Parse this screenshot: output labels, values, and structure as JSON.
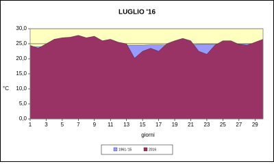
{
  "chart_data": {
    "type": "area",
    "title": "LUGLIO '16",
    "x_label": "giorni",
    "y_label": "°C",
    "x": [
      1,
      2,
      3,
      4,
      5,
      6,
      7,
      8,
      9,
      10,
      11,
      12,
      13,
      14,
      15,
      16,
      17,
      18,
      19,
      20,
      21,
      22,
      23,
      24,
      25,
      26,
      27,
      28,
      29,
      30
    ],
    "xlim": [
      1,
      30
    ],
    "xticks": [
      1,
      3,
      5,
      7,
      9,
      11,
      13,
      15,
      17,
      19,
      21,
      23,
      25,
      27,
      29
    ],
    "ylim": [
      0,
      30
    ],
    "yticks": [
      {
        "value": 0,
        "label": "0,0"
      },
      {
        "value": 5,
        "label": "5,0"
      },
      {
        "value": 10,
        "label": "10,0"
      },
      {
        "value": 15,
        "label": "15,0"
      },
      {
        "value": 20,
        "label": "20,0"
      },
      {
        "value": 25,
        "label": "25,0"
      },
      {
        "value": 30,
        "label": "30,0"
      }
    ],
    "grid": true,
    "plot_background": "#ffffc0",
    "legend": "bottom",
    "series": [
      {
        "name": "1961-'15",
        "color": "#9999ff",
        "values": [
          24.0,
          24.0,
          24.1,
          24.1,
          24.2,
          24.2,
          24.3,
          24.3,
          24.3,
          24.4,
          24.4,
          24.4,
          24.5,
          24.5,
          24.5,
          24.6,
          24.6,
          24.6,
          24.7,
          24.7,
          24.7,
          24.8,
          24.8,
          24.8,
          24.9,
          24.9,
          24.9,
          25.0,
          25.0,
          25.0
        ]
      },
      {
        "name": "2016",
        "color": "#993366",
        "values": [
          24.5,
          23.5,
          25.0,
          26.5,
          27.0,
          27.2,
          27.8,
          27.0,
          27.5,
          26.0,
          26.5,
          25.5,
          25.0,
          20.2,
          22.5,
          23.5,
          22.5,
          25.0,
          26.0,
          26.8,
          26.0,
          22.5,
          21.5,
          24.5,
          26.0,
          26.0,
          24.8,
          24.5,
          25.5,
          26.5
        ]
      }
    ]
  }
}
